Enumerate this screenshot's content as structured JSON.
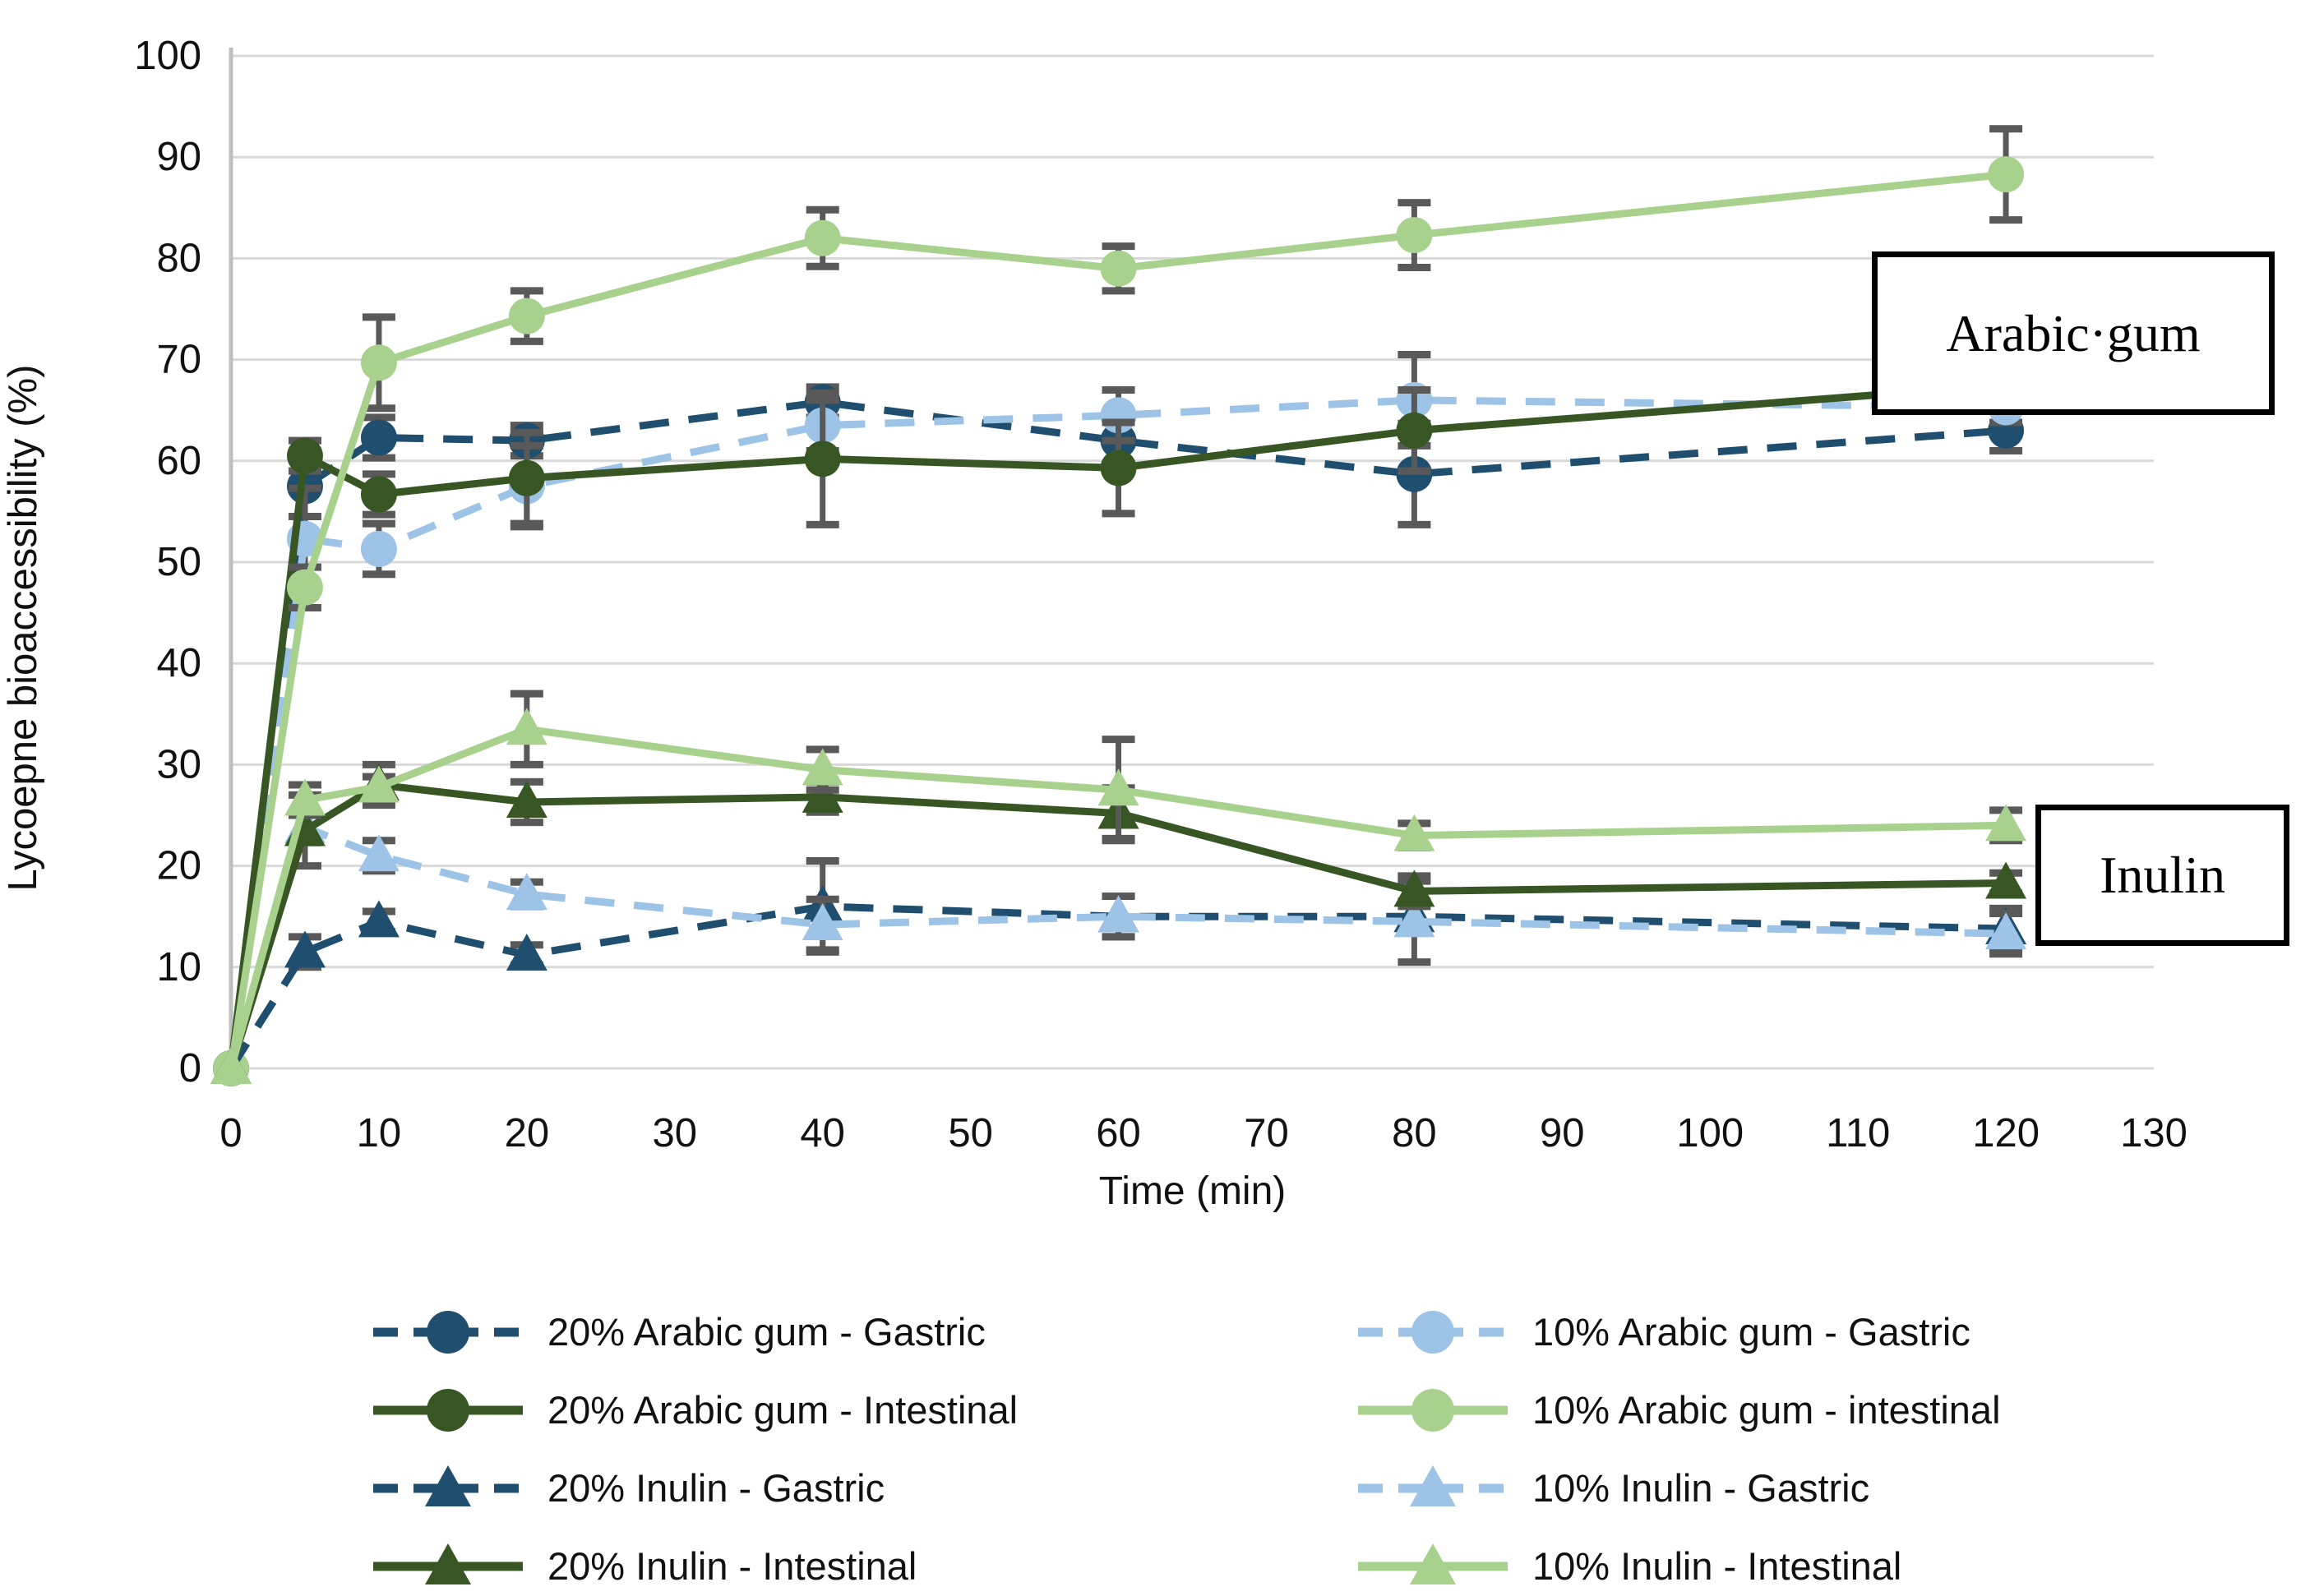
{
  "y_axis": {
    "title": "Lycoepne bioaccessibility (%)"
  },
  "x_axis": {
    "title": "Time (min)"
  },
  "annotations": [
    {
      "text": "Arabic·gum"
    },
    {
      "text": "Inulin"
    }
  ],
  "chart_data": {
    "type": "line",
    "title": "",
    "xlabel": "Time (min)",
    "ylabel": "Lycoepne bioaccessibility (%)",
    "xlim": [
      0,
      130
    ],
    "ylim": [
      0,
      100
    ],
    "x_ticks": [
      0,
      10,
      20,
      30,
      40,
      50,
      60,
      70,
      80,
      90,
      100,
      110,
      120,
      130
    ],
    "y_ticks": [
      0,
      10,
      20,
      30,
      40,
      50,
      60,
      70,
      80,
      90,
      100
    ],
    "grid": "horizontal",
    "gridline_color": "#D9D9D9",
    "axis_color": "#BFBFBF",
    "error_bar_color": "#595959",
    "legend_position": "bottom-two-columns",
    "x": [
      0,
      5,
      10,
      20,
      40,
      60,
      80,
      120
    ],
    "series": [
      {
        "name": "20% Arabic gum - Gastric",
        "color": "#1F4E6E",
        "line": "dashed",
        "marker": "circle",
        "values": [
          0,
          57.5,
          62.3,
          62.0,
          65.8,
          62.0,
          58.7,
          63.0
        ],
        "errors": [
          0,
          3.0,
          2.0,
          1.5,
          1.5,
          2.5,
          5.0,
          2.0
        ]
      },
      {
        "name": "10% Arabic gum - Gastric",
        "color": "#9DC3E6",
        "line": "dashed",
        "marker": "circle",
        "values": [
          0,
          52.3,
          51.3,
          57.5,
          63.5,
          64.5,
          66.0,
          65.3
        ],
        "errors": [
          0,
          5.0,
          2.5,
          4.0,
          2.5,
          2.5,
          4.5,
          1.5
        ]
      },
      {
        "name": "20% Arabic gum - Intestinal",
        "color": "#375623",
        "line": "solid",
        "marker": "circle",
        "values": [
          0,
          60.5,
          56.7,
          58.3,
          60.2,
          59.3,
          63.0,
          67.5
        ],
        "errors": [
          0,
          1.5,
          2.0,
          4.5,
          6.5,
          4.5,
          4.0,
          1.5
        ]
      },
      {
        "name": "10% Arabic gum - intestinal",
        "color": "#A9D18E",
        "line": "solid",
        "marker": "circle",
        "values": [
          0,
          47.5,
          69.7,
          74.3,
          82.0,
          79.0,
          82.3,
          88.3
        ],
        "errors": [
          0,
          2.0,
          4.5,
          2.5,
          2.8,
          2.2,
          3.2,
          4.5
        ]
      },
      {
        "name": "20% Inulin - Gastric",
        "color": "#1F4E6E",
        "line": "dashed",
        "marker": "triangle",
        "values": [
          0,
          11.5,
          14.5,
          11.2,
          16.0,
          15.0,
          15.0,
          13.8
        ],
        "errors": [
          0,
          1.5,
          1.0,
          1.0,
          4.5,
          2.0,
          1.5,
          2.0
        ]
      },
      {
        "name": "10% Inulin - Gastric",
        "color": "#9DC3E6",
        "line": "dashed",
        "marker": "triangle",
        "values": [
          0,
          23.8,
          21.0,
          17.2,
          14.2,
          15.0,
          14.5,
          13.3
        ],
        "errors": [
          0,
          1.5,
          1.5,
          1.2,
          2.5,
          2.0,
          4.0,
          2.0
        ]
      },
      {
        "name": "20% Inulin - Intestinal",
        "color": "#375623",
        "line": "solid",
        "marker": "triangle",
        "values": [
          0,
          23.5,
          28.0,
          26.3,
          26.8,
          25.2,
          17.5,
          18.3
        ],
        "errors": [
          0,
          3.5,
          2.0,
          2.0,
          1.5,
          2.5,
          1.5,
          1.0
        ]
      },
      {
        "name": "10% Inulin - Intestinal",
        "color": "#A9D18E",
        "line": "solid",
        "marker": "triangle",
        "values": [
          0,
          26.5,
          27.8,
          33.5,
          29.5,
          27.5,
          23.0,
          24.0
        ],
        "errors": [
          0,
          1.5,
          1.0,
          3.5,
          2.0,
          5.0,
          1.2,
          1.5
        ]
      }
    ]
  }
}
